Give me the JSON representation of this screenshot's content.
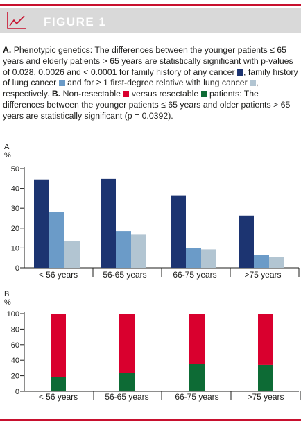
{
  "figure": {
    "title": "FIGURE 1"
  },
  "caption": {
    "a_label": "A.",
    "a_text_1": " Phenotypic genetics: The differences between the younger patients ≤ 65 years and elderly patients > 65 years are statistically significant with p-values of 0.028, 0.0026 and < 0.0001 for family history of any cancer ",
    "a_text_2": ", family history of lung cancer ",
    "a_text_3": " and for ≥ 1 first-degree relative with lung cancer ",
    "a_text_4": ", respectively. ",
    "b_label": "B.",
    "b_text_1": " Non-resectable ",
    "b_text_2": " versus resectable ",
    "b_text_3": " patients: The differences between the younger patients ≤ 65 years and older patients > 65 years are statistically significant (p = 0.0392)."
  },
  "colors": {
    "accent": "#c8102e",
    "header_bg": "#d9d9d9",
    "family_history_any_cancer": "#1c3471",
    "family_history_lung_cancer": "#6b9bc8",
    "first_degree_relative_lung_cancer": "#b2c5d2",
    "non_resectable": "#d9002e",
    "resectable": "#0d6b35"
  },
  "chart_data": [
    {
      "type": "bar",
      "panel_label": "A",
      "ylabel": "%",
      "ylim": [
        0,
        50
      ],
      "yticks": [
        0,
        10,
        20,
        30,
        40,
        50
      ],
      "categories": [
        "< 56 years",
        "56-65 years",
        "66-75 years",
        ">75 years"
      ],
      "series": [
        {
          "color": "#1c3471",
          "values": [
            44.5,
            44.8,
            36.5,
            26.3
          ]
        },
        {
          "color": "#6b9bc8",
          "values": [
            28,
            18.5,
            10,
            6.5
          ]
        },
        {
          "color": "#b2c5d2",
          "values": [
            13.5,
            17,
            9.3,
            5.3
          ]
        }
      ],
      "legend": "none",
      "grid": false
    },
    {
      "type": "bar",
      "stacked": true,
      "panel_label": "B",
      "ylabel": "%",
      "ylim": [
        0,
        100
      ],
      "yticks": [
        0,
        20,
        40,
        60,
        80,
        100
      ],
      "categories": [
        "< 56 years",
        "56-65 years",
        "66-75 years",
        ">75 years"
      ],
      "series": [
        {
          "color": "#0d6b35",
          "values": [
            18,
            24,
            35,
            34
          ]
        },
        {
          "color": "#d9002e",
          "values": [
            82,
            76,
            65,
            66
          ]
        }
      ],
      "legend": "none",
      "grid": false
    }
  ]
}
